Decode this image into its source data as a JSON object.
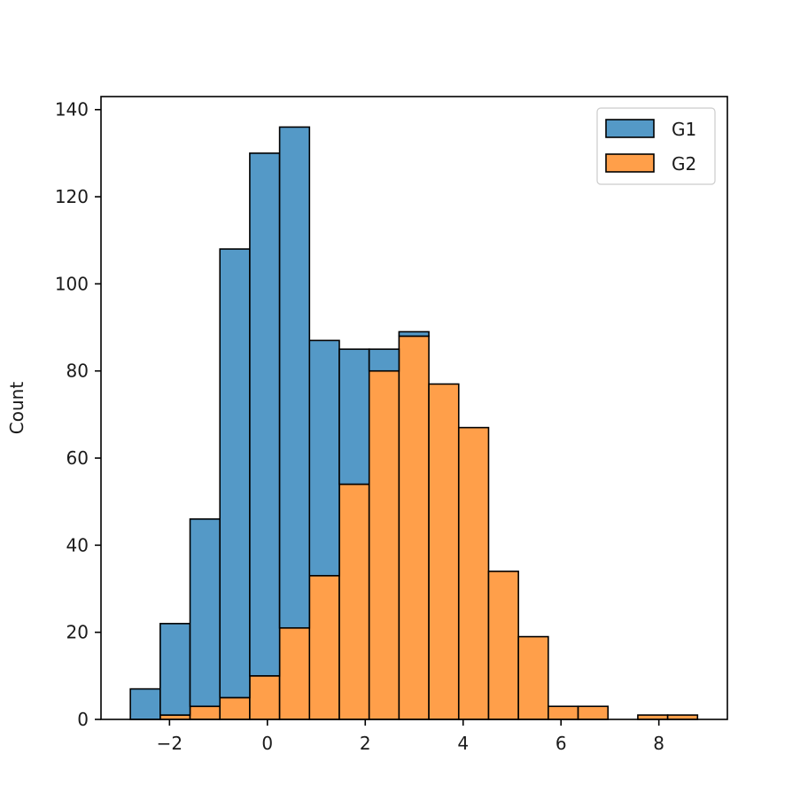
{
  "chart_data": {
    "type": "bar",
    "stacked": true,
    "title": "",
    "xlabel": "",
    "ylabel": "Count",
    "bin_edges": [
      -2.8,
      -2.19,
      -1.58,
      -0.97,
      -0.36,
      0.25,
      0.86,
      1.47,
      2.08,
      2.69,
      3.3,
      3.91,
      4.52,
      5.13,
      5.74,
      6.35,
      6.96,
      7.57,
      8.18,
      8.79
    ],
    "xlim": [
      -3.4,
      9.4
    ],
    "ylim": [
      0,
      143
    ],
    "xticks": [
      -2,
      0,
      2,
      4,
      6,
      8
    ],
    "xtick_labels": [
      "−2",
      "0",
      "2",
      "4",
      "6",
      "8"
    ],
    "yticks": [
      0,
      20,
      40,
      60,
      80,
      100,
      120,
      140
    ],
    "ytick_labels": [
      "0",
      "20",
      "40",
      "60",
      "80",
      "100",
      "120",
      "140"
    ],
    "legend_position": "top-right",
    "grid": false,
    "series": [
      {
        "name": "G2",
        "color": "#ff9f4a",
        "values": [
          0,
          1,
          3,
          5,
          10,
          21,
          33,
          54,
          80,
          88,
          77,
          67,
          34,
          19,
          3,
          3,
          0,
          1,
          1
        ]
      },
      {
        "name": "G1",
        "color": "#5499c7",
        "values": [
          7,
          21,
          43,
          103,
          120,
          115,
          54,
          31,
          5,
          1,
          0,
          0,
          0,
          0,
          0,
          0,
          0,
          0,
          0
        ]
      }
    ],
    "legend_order": [
      "G1",
      "G2"
    ]
  }
}
